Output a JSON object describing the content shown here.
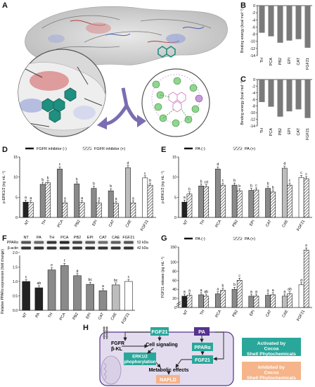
{
  "panels": {
    "A": "A",
    "B": "B",
    "C": "C",
    "D": "D",
    "E": "E",
    "F": "F",
    "G": "G",
    "H": "H"
  },
  "categories": [
    "NT",
    "PA",
    "TH",
    "PCA",
    "PB2",
    "EPI",
    "CAT",
    "CAE",
    "FGF21"
  ],
  "colors": {
    "bar_dark": "#222222",
    "bar_gray": "#8a8a8a",
    "bar_light": "#bdbdbd",
    "bar_white": "#ffffff",
    "teal": "#2aa79b",
    "purple": "#55338f",
    "peach": "#f5b489",
    "panel_bg": "#e3dcef",
    "mol_teal": "#1f8f7f",
    "arrow": "#7b6db1"
  },
  "chart_data": [
    {
      "id": "B",
      "type": "bar",
      "ylabel": "Binding energy (kcal mol⁻¹)",
      "categories": [
        "TH",
        "PCA",
        "PB2",
        "EPI",
        "CAT",
        "FGF21"
      ],
      "values": [
        -7.6,
        -8.6,
        -10.4,
        -9.8,
        -9.4,
        -11.8
      ],
      "ylim": [
        -14,
        0
      ],
      "yticks": [
        "0",
        "-2",
        "-4",
        "-6",
        "-8",
        "-10",
        "-12",
        "-14"
      ]
    },
    {
      "id": "C",
      "type": "bar",
      "ylabel": "Binding energy (kcal mol⁻¹)",
      "categories": [
        "TH",
        "PCA",
        "PB2",
        "EPI",
        "CAT",
        "FGF21"
      ],
      "values": [
        -6.8,
        -8.2,
        -11.2,
        -9.6,
        -9.0,
        -11.6
      ],
      "ylim": [
        -14,
        0
      ],
      "yticks": [
        "0",
        "-2",
        "-4",
        "-6",
        "-8",
        "-10",
        "-12",
        "-14"
      ]
    },
    {
      "id": "D",
      "type": "bar",
      "ylabel": "p-ERK1/2 (ng mL⁻¹)",
      "legend": [
        "FGFR inhibitor (-)",
        "FGFR inhibitor (+)"
      ],
      "categories": [
        "NT",
        "TH",
        "PCA",
        "PB2",
        "EPI",
        "CAT",
        "CAE",
        "FGF21"
      ],
      "series": [
        {
          "name": "FGFR inhibitor (-)",
          "values": [
            3.8,
            8.2,
            12.0,
            8.3,
            7.2,
            6.6,
            12.3,
            9.8
          ],
          "letters": [
            "a",
            "b",
            "c",
            "b",
            "b",
            "b",
            "d",
            "c"
          ]
        },
        {
          "name": "FGFR inhibitor (+)",
          "values": [
            3.7,
            8.6,
            3.6,
            3.7,
            3.6,
            3.5,
            3.6,
            8.0
          ],
          "letters": [
            "a",
            "b",
            "a",
            "a",
            "a",
            "a",
            "a",
            "b"
          ]
        }
      ],
      "ylim": [
        0,
        15
      ],
      "yticks": [
        "0",
        "5",
        "10",
        "15"
      ]
    },
    {
      "id": "E",
      "type": "bar",
      "ylabel": "p-ERK1/2 (ng mL⁻¹)",
      "legend": [
        "PA (-)",
        "PA (+)"
      ],
      "categories": [
        "NT",
        "TH",
        "PCA",
        "PB2",
        "EPI",
        "CAT",
        "CAE",
        "FGF21"
      ],
      "series": [
        {
          "name": "PA (-)",
          "values": [
            3.8,
            7.8,
            12.0,
            8.0,
            6.7,
            7.2,
            12.2,
            9.9
          ],
          "letters": [
            "a",
            "b",
            "d",
            "b",
            "b",
            "b",
            "d",
            "c"
          ]
        },
        {
          "name": "PA (+)",
          "values": [
            5.8,
            7.6,
            8.0,
            6.6,
            6.8,
            6.3,
            8.0,
            9.6
          ],
          "letters": [
            "b",
            "cd",
            "c",
            "b",
            "c",
            "b",
            "c",
            "c"
          ]
        }
      ],
      "ylim": [
        0,
        15
      ],
      "yticks": [
        "0",
        "5",
        "10",
        "15"
      ]
    },
    {
      "id": "F",
      "type": "bar",
      "ylabel": "Relative PPARα expression (fold change)",
      "blot_labels": [
        "PPARα",
        "β-actin"
      ],
      "blot_sizes": [
        "52 kDa",
        "42 kDa"
      ],
      "categories": [
        "NT",
        "PA",
        "TH",
        "PCA",
        "PB2",
        "EPI",
        "CAT",
        "CAE",
        "FGF21"
      ],
      "values": [
        1.0,
        0.78,
        1.4,
        1.55,
        1.2,
        0.9,
        0.68,
        0.88,
        1.0
      ],
      "letters": [
        "c",
        "ab",
        "e",
        "f",
        "d",
        "bc",
        "a",
        "bc",
        "c"
      ],
      "ylim": [
        0,
        2
      ],
      "yticks": [
        "0.0",
        "0.5",
        "1.0",
        "1.5",
        "2.0"
      ]
    },
    {
      "id": "G",
      "type": "bar",
      "ylabel": "FGF21 release (pg mL⁻¹)",
      "legend": [
        "PA (-)",
        "PA (+)"
      ],
      "categories": [
        "NT",
        "TH",
        "PCA",
        "PB2",
        "EPI",
        "CAT",
        "CAE",
        "FGF21"
      ],
      "series": [
        {
          "name": "PA (-)",
          "values": [
            25,
            28,
            30,
            40,
            25,
            27,
            25,
            50
          ],
          "letters": [
            "a",
            "a",
            "a",
            "b",
            "a",
            "a",
            "a",
            "d"
          ]
        },
        {
          "name": "PA (+)",
          "values": [
            27,
            25,
            38,
            60,
            25,
            28,
            30,
            140
          ],
          "letters": [
            "a",
            "ab",
            "b",
            "c",
            "a",
            "a",
            "ab",
            "e"
          ]
        }
      ],
      "ylim": [
        0,
        160
      ],
      "yticks": [
        "0",
        "20",
        "40",
        "60",
        "80",
        "100",
        "150"
      ]
    }
  ],
  "diagram": {
    "fgf21_top": "FGF21",
    "pa": "PA",
    "fgfr": "FGFR",
    "klotho": "β-KL",
    "cell_signaling": "Cell signaling",
    "pparalpha": "PPARα",
    "fgf21_bottom": "FGF21",
    "erk": "ERK1/2 phophorylation",
    "metabolic": "Metabolic effects",
    "nafld": "NAFLD",
    "legend_activated": "Activated by Cocoa Shell Phytochemicals",
    "legend_inhibited": "Inhibited by Cocoa Shell Phytochemicals"
  }
}
